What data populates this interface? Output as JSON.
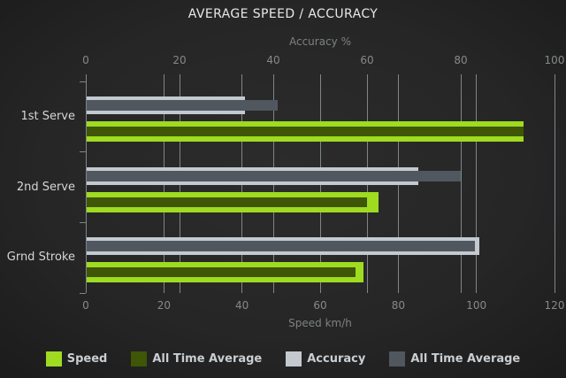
{
  "title": "AVERAGE SPEED / ACCURACY",
  "top_axis": {
    "title": "Accuracy %",
    "ticks": [
      0,
      20,
      40,
      60,
      80,
      100
    ],
    "min": 0,
    "max": 100
  },
  "bottom_axis": {
    "title": "Speed km/h",
    "ticks": [
      0,
      20,
      40,
      60,
      80,
      100,
      120
    ],
    "min": 0,
    "max": 120
  },
  "legend": [
    {
      "label": "Speed",
      "color": "#9edb21"
    },
    {
      "label": "All Time Average",
      "color": "#3e5606"
    },
    {
      "label": "Accuracy",
      "color": "#c3c9cf"
    },
    {
      "label": "All Time Average",
      "color": "#51575f"
    }
  ],
  "chart_data": {
    "type": "bar",
    "orientation": "horizontal",
    "title": "AVERAGE SPEED / ACCURACY",
    "categories": [
      "1st Serve",
      "2nd Serve",
      "Grnd Stroke"
    ],
    "series": [
      {
        "name": "Speed",
        "axis": "speed",
        "color": "#9edb21",
        "values": [
          112,
          75,
          71
        ]
      },
      {
        "name": "All Time Average",
        "axis": "speed",
        "color": "#3e5606",
        "values": [
          112,
          72,
          69
        ]
      },
      {
        "name": "Accuracy",
        "axis": "accuracy",
        "color": "#c3c9cf",
        "values": [
          34,
          71,
          84
        ]
      },
      {
        "name": "All Time Average",
        "axis": "accuracy",
        "color": "#51575f",
        "values": [
          41,
          80,
          83
        ]
      }
    ],
    "axes": {
      "speed": {
        "label": "Speed km/h",
        "range": [
          0,
          120
        ],
        "position": "bottom"
      },
      "accuracy": {
        "label": "Accuracy %",
        "range": [
          0,
          100
        ],
        "position": "top"
      }
    },
    "grid": true,
    "legend_position": "bottom"
  },
  "colors": {
    "background_center": "#2c2c2c",
    "background_edge": "#131313",
    "gridline": "#7e858b",
    "title_text": "#e7e8e8",
    "tick_text": "#85898c",
    "axis_title_text": "#7d8184",
    "category_text": "#d4d6d7",
    "legend_text": "#c9ced2"
  }
}
